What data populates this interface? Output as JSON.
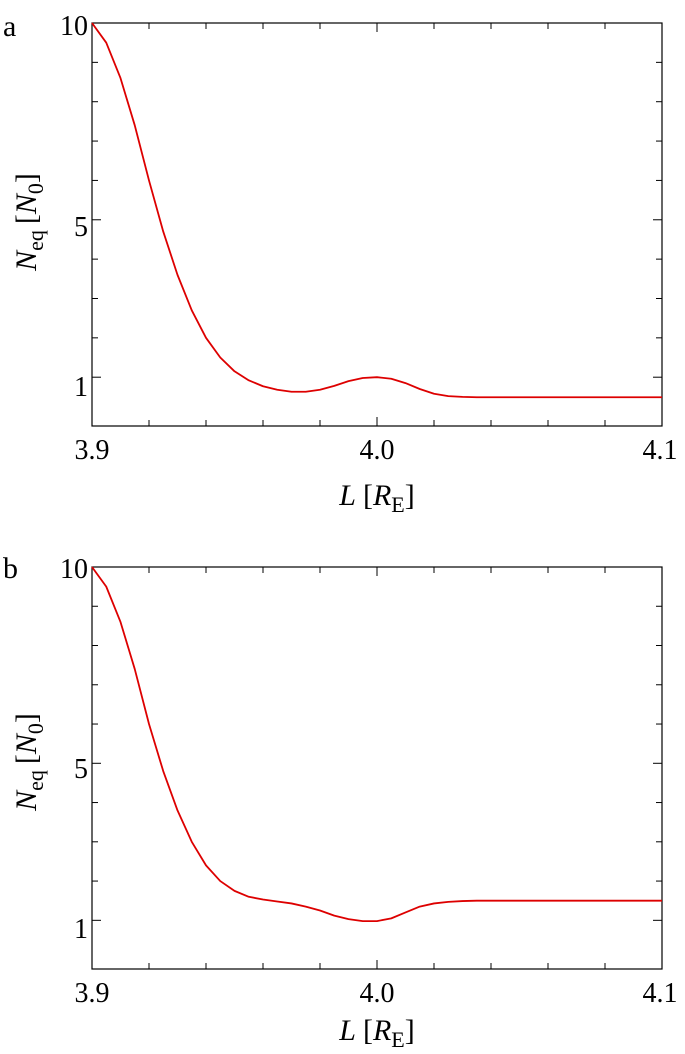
{
  "chart_data": [
    {
      "panel_label": "a",
      "type": "line",
      "xlabel_main": "L",
      "xlabel_unit": "R",
      "xlabel_sub": "E",
      "ylabel_main": "N",
      "ylabel_sub": "eq",
      "ylabel_unit": "N",
      "ylabel_unit_sub": "0",
      "xlim": [
        3.9,
        4.1
      ],
      "ylim": [
        -0.24,
        10
      ],
      "x_ticks": [
        3.9,
        4.0,
        4.1
      ],
      "x_tick_labels": [
        "3.9",
        "4.0",
        "4.1"
      ],
      "y_ticks": [
        1,
        5,
        10
      ],
      "y_tick_labels": [
        "1",
        "5",
        "10"
      ],
      "color": "#dd0000",
      "series": [
        {
          "x": [
            3.9,
            3.905,
            3.91,
            3.915,
            3.92,
            3.925,
            3.93,
            3.935,
            3.94,
            3.945,
            3.95,
            3.955,
            3.96,
            3.965,
            3.97,
            3.975,
            3.98,
            3.985,
            3.99,
            3.995,
            4.0,
            4.005,
            4.01,
            4.015,
            4.02,
            4.025,
            4.03,
            4.035,
            4.04,
            4.05,
            4.06,
            4.07,
            4.08,
            4.09,
            4.1
          ],
          "y": [
            10.0,
            9.5,
            8.6,
            7.4,
            6.0,
            4.7,
            3.6,
            2.7,
            2.0,
            1.5,
            1.15,
            0.92,
            0.77,
            0.68,
            0.63,
            0.63,
            0.68,
            0.78,
            0.9,
            0.98,
            1.0,
            0.96,
            0.85,
            0.7,
            0.58,
            0.52,
            0.5,
            0.49,
            0.49,
            0.49,
            0.49,
            0.49,
            0.49,
            0.49,
            0.49
          ]
        }
      ]
    },
    {
      "panel_label": "b",
      "type": "line",
      "xlabel_main": "L",
      "xlabel_unit": "R",
      "xlabel_sub": "E",
      "ylabel_main": "N",
      "ylabel_sub": "eq",
      "ylabel_unit": "N",
      "ylabel_unit_sub": "0",
      "xlim": [
        3.9,
        4.1
      ],
      "ylim": [
        -0.24,
        10
      ],
      "x_ticks": [
        3.9,
        4.0,
        4.1
      ],
      "x_tick_labels": [
        "3.9",
        "4.0",
        "4.1"
      ],
      "y_ticks": [
        1,
        5,
        10
      ],
      "y_tick_labels": [
        "1",
        "5",
        "10"
      ],
      "color": "#dd0000",
      "series": [
        {
          "x": [
            3.9,
            3.905,
            3.91,
            3.915,
            3.92,
            3.925,
            3.93,
            3.935,
            3.94,
            3.945,
            3.95,
            3.955,
            3.96,
            3.965,
            3.97,
            3.975,
            3.98,
            3.985,
            3.99,
            3.995,
            4.0,
            4.005,
            4.01,
            4.015,
            4.02,
            4.025,
            4.03,
            4.035,
            4.04,
            4.05,
            4.06,
            4.07,
            4.08,
            4.09,
            4.1
          ],
          "y": [
            10.0,
            9.5,
            8.6,
            7.4,
            6.0,
            4.8,
            3.8,
            3.0,
            2.4,
            2.0,
            1.75,
            1.6,
            1.53,
            1.48,
            1.43,
            1.35,
            1.25,
            1.12,
            1.03,
            0.98,
            0.98,
            1.05,
            1.2,
            1.35,
            1.43,
            1.47,
            1.49,
            1.5,
            1.5,
            1.5,
            1.5,
            1.5,
            1.5,
            1.5,
            1.5
          ]
        }
      ]
    }
  ]
}
